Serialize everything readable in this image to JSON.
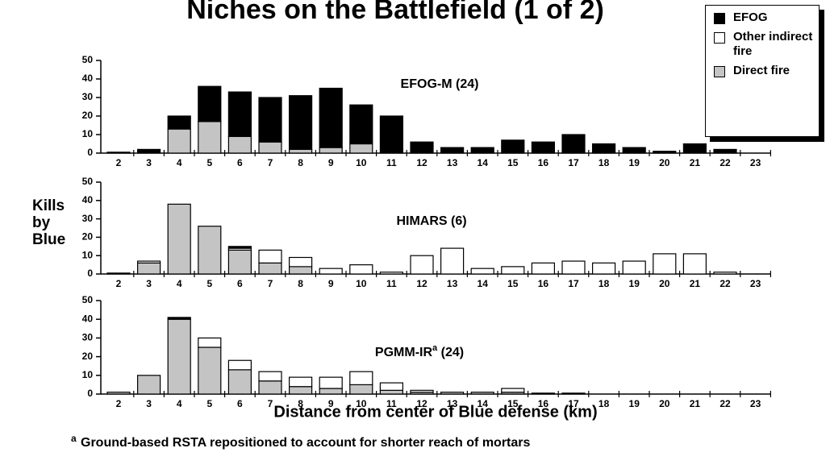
{
  "title": "Niches on the Battlefield (1 of 2)",
  "y_label": "Kills by Blue",
  "x_label": "Distance from center of Blue defense (km)",
  "footnote_marker": "a",
  "footnote": "Ground-based RSTA repositioned to account for shorter reach of mortars",
  "chart_data": [
    {
      "type": "bar",
      "stacked": true,
      "title": "EFOG-M (24)",
      "categories": [
        "2",
        "3",
        "4",
        "5",
        "6",
        "7",
        "8",
        "9",
        "10",
        "11",
        "12",
        "13",
        "14",
        "15",
        "16",
        "17",
        "18",
        "19",
        "20",
        "21",
        "22",
        "23"
      ],
      "series": [
        {
          "name": "EFOG",
          "color": "#000000",
          "values": [
            0.5,
            2,
            7,
            19,
            24,
            24,
            29,
            32,
            21,
            20,
            6,
            3,
            3,
            7,
            6,
            10,
            5,
            3,
            1,
            5,
            2,
            0
          ]
        },
        {
          "name": "Other indirect fire",
          "color": "#ffffff",
          "values": [
            0,
            0,
            0,
            0,
            0,
            0,
            0,
            0,
            0,
            0,
            0,
            0,
            0,
            0,
            0,
            0,
            0,
            0,
            0,
            0,
            0,
            0
          ]
        },
        {
          "name": "Direct fire",
          "color": "#c4c4c4",
          "values": [
            0,
            0,
            13,
            17,
            9,
            6,
            2,
            3,
            5,
            0,
            0,
            0,
            0,
            0,
            0,
            0,
            0,
            0,
            0,
            0,
            0,
            0
          ]
        }
      ],
      "ylim": [
        0,
        50
      ],
      "yticks": [
        0,
        10,
        20,
        30,
        40,
        50
      ]
    },
    {
      "type": "bar",
      "stacked": true,
      "title": "HIMARS (6)",
      "categories": [
        "2",
        "3",
        "4",
        "5",
        "6",
        "7",
        "8",
        "9",
        "10",
        "11",
        "12",
        "13",
        "14",
        "15",
        "16",
        "17",
        "18",
        "19",
        "20",
        "21",
        "22",
        "23"
      ],
      "series": [
        {
          "name": "EFOG",
          "color": "#000000",
          "values": [
            0,
            0,
            0,
            0,
            1,
            0,
            0,
            0,
            0,
            0,
            0,
            0,
            0,
            0,
            0,
            0,
            0,
            0,
            0,
            0,
            0,
            0
          ]
        },
        {
          "name": "Other indirect fire",
          "color": "#ffffff",
          "values": [
            0,
            1,
            0,
            0,
            1,
            7,
            5,
            3,
            5,
            1,
            10,
            14,
            3,
            4,
            6,
            7,
            6,
            7,
            11,
            11,
            1,
            0
          ]
        },
        {
          "name": "Direct fire",
          "color": "#c4c4c4",
          "values": [
            0.5,
            6,
            38,
            26,
            13,
            6,
            4,
            0,
            0,
            0,
            0,
            0,
            0,
            0,
            0,
            0,
            0,
            0,
            0,
            0,
            0,
            0
          ]
        }
      ],
      "ylim": [
        0,
        50
      ],
      "yticks": [
        0,
        10,
        20,
        30,
        40,
        50
      ]
    },
    {
      "type": "bar",
      "stacked": true,
      "title": "PGMM-IR",
      "title_superscript": "a",
      "title_suffix": "(24)",
      "categories": [
        "2",
        "3",
        "4",
        "5",
        "6",
        "7",
        "8",
        "9",
        "10",
        "11",
        "12",
        "13",
        "14",
        "15",
        "16",
        "17",
        "18",
        "19",
        "20",
        "21",
        "22",
        "23"
      ],
      "series": [
        {
          "name": "EFOG",
          "color": "#000000",
          "values": [
            0,
            0,
            1,
            0,
            0,
            0,
            0,
            0,
            0,
            0,
            0,
            0,
            0,
            0,
            0,
            0,
            0,
            0,
            0,
            0,
            0,
            0
          ]
        },
        {
          "name": "Other indirect fire",
          "color": "#ffffff",
          "values": [
            0,
            0,
            0,
            5,
            5,
            5,
            5,
            6,
            7,
            4,
            1,
            0,
            0,
            2,
            0.5,
            0.5,
            0,
            0,
            0,
            0,
            0,
            0
          ]
        },
        {
          "name": "Direct fire",
          "color": "#c4c4c4",
          "values": [
            1,
            10,
            40,
            25,
            13,
            7,
            4,
            3,
            5,
            2,
            1,
            1,
            1,
            1,
            0,
            0,
            0,
            0,
            0,
            0,
            0,
            0
          ]
        }
      ],
      "ylim": [
        0,
        50
      ],
      "yticks": [
        0,
        10,
        20,
        30,
        40,
        50
      ]
    }
  ]
}
